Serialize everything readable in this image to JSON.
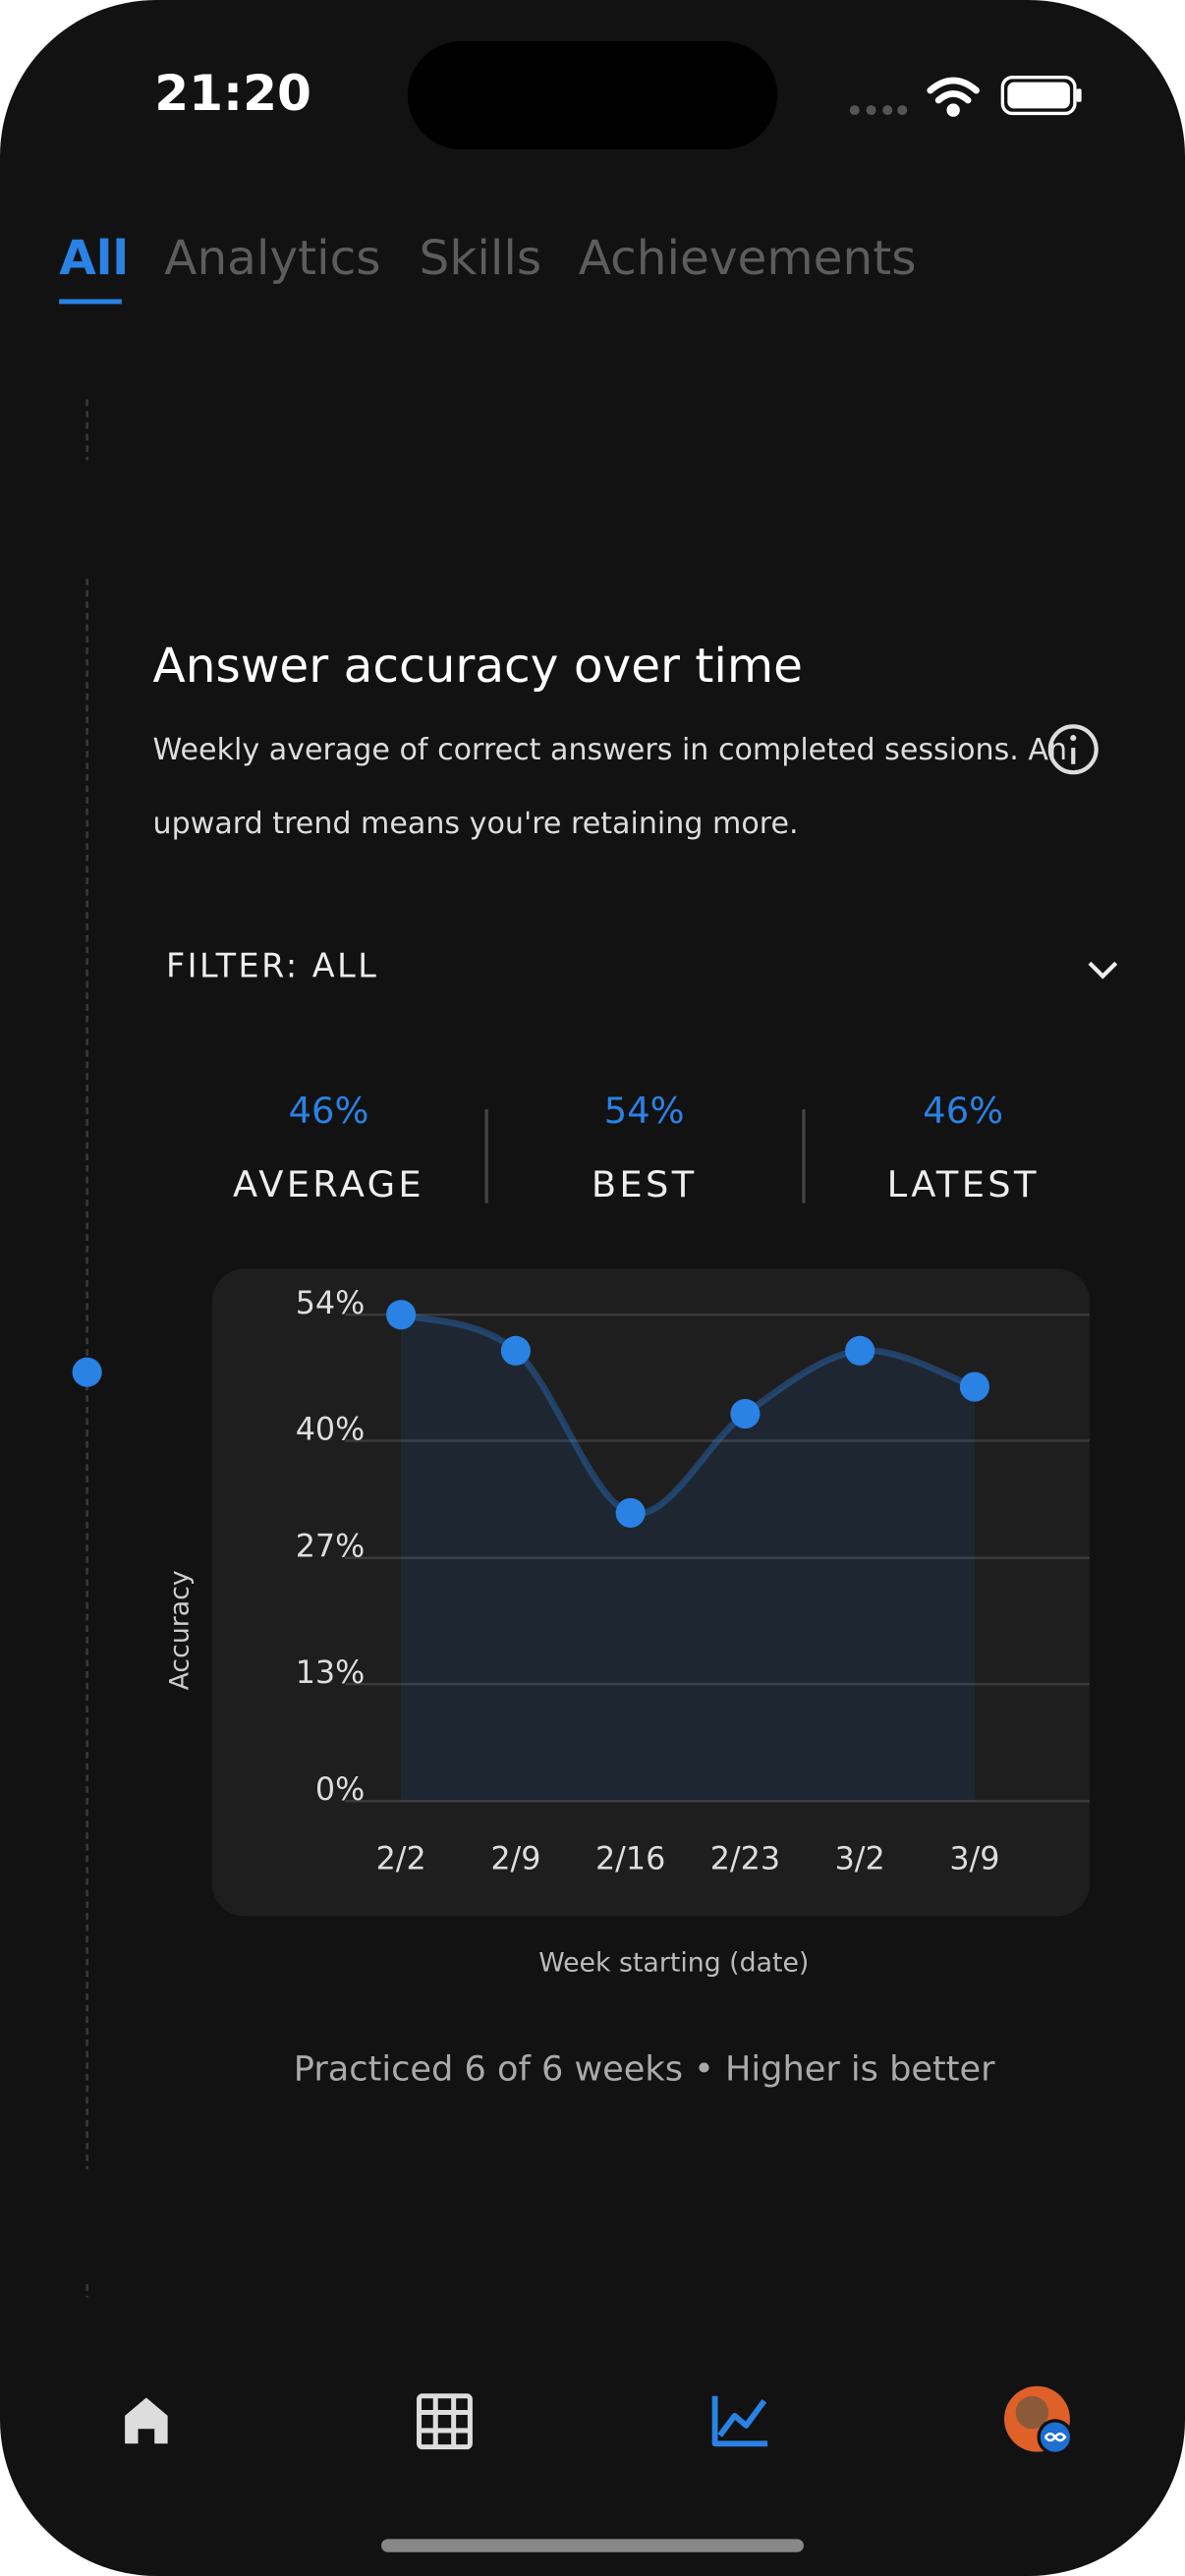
{
  "status_bar": {
    "time": "21:20"
  },
  "tabs": [
    "All",
    "Analytics",
    "Skills",
    "Achievements"
  ],
  "card": {
    "title": "Answer accuracy over time",
    "description_lines": [
      "Weekly average of correct answers in completed sessions. An",
      "upward trend means you're retaining more."
    ],
    "filter": "FILTER: ALL",
    "stats": [
      {
        "value": "46%",
        "label": "AVERAGE"
      },
      {
        "value": "54%",
        "label": "BEST"
      },
      {
        "value": "46%",
        "label": "LATEST"
      }
    ],
    "footer": "Practiced 6 of 6 weeks • Higher is better"
  },
  "chart_data": {
    "type": "area",
    "categories": [
      "2/2",
      "2/9",
      "2/16",
      "2/23",
      "3/2",
      "3/9"
    ],
    "values": [
      54,
      50,
      32,
      43,
      50,
      46
    ],
    "color": "#2a82e4",
    "ylim": [
      0,
      54
    ],
    "yticks": [
      {
        "value": 0,
        "label": "0%"
      },
      {
        "value": 13,
        "label": "13%"
      },
      {
        "value": 27,
        "label": "27%"
      },
      {
        "value": 40,
        "label": "40%"
      },
      {
        "value": 54,
        "label": "54%"
      }
    ],
    "y_label": "Accuracy",
    "x_label": "Week starting (date)",
    "grid": true
  }
}
